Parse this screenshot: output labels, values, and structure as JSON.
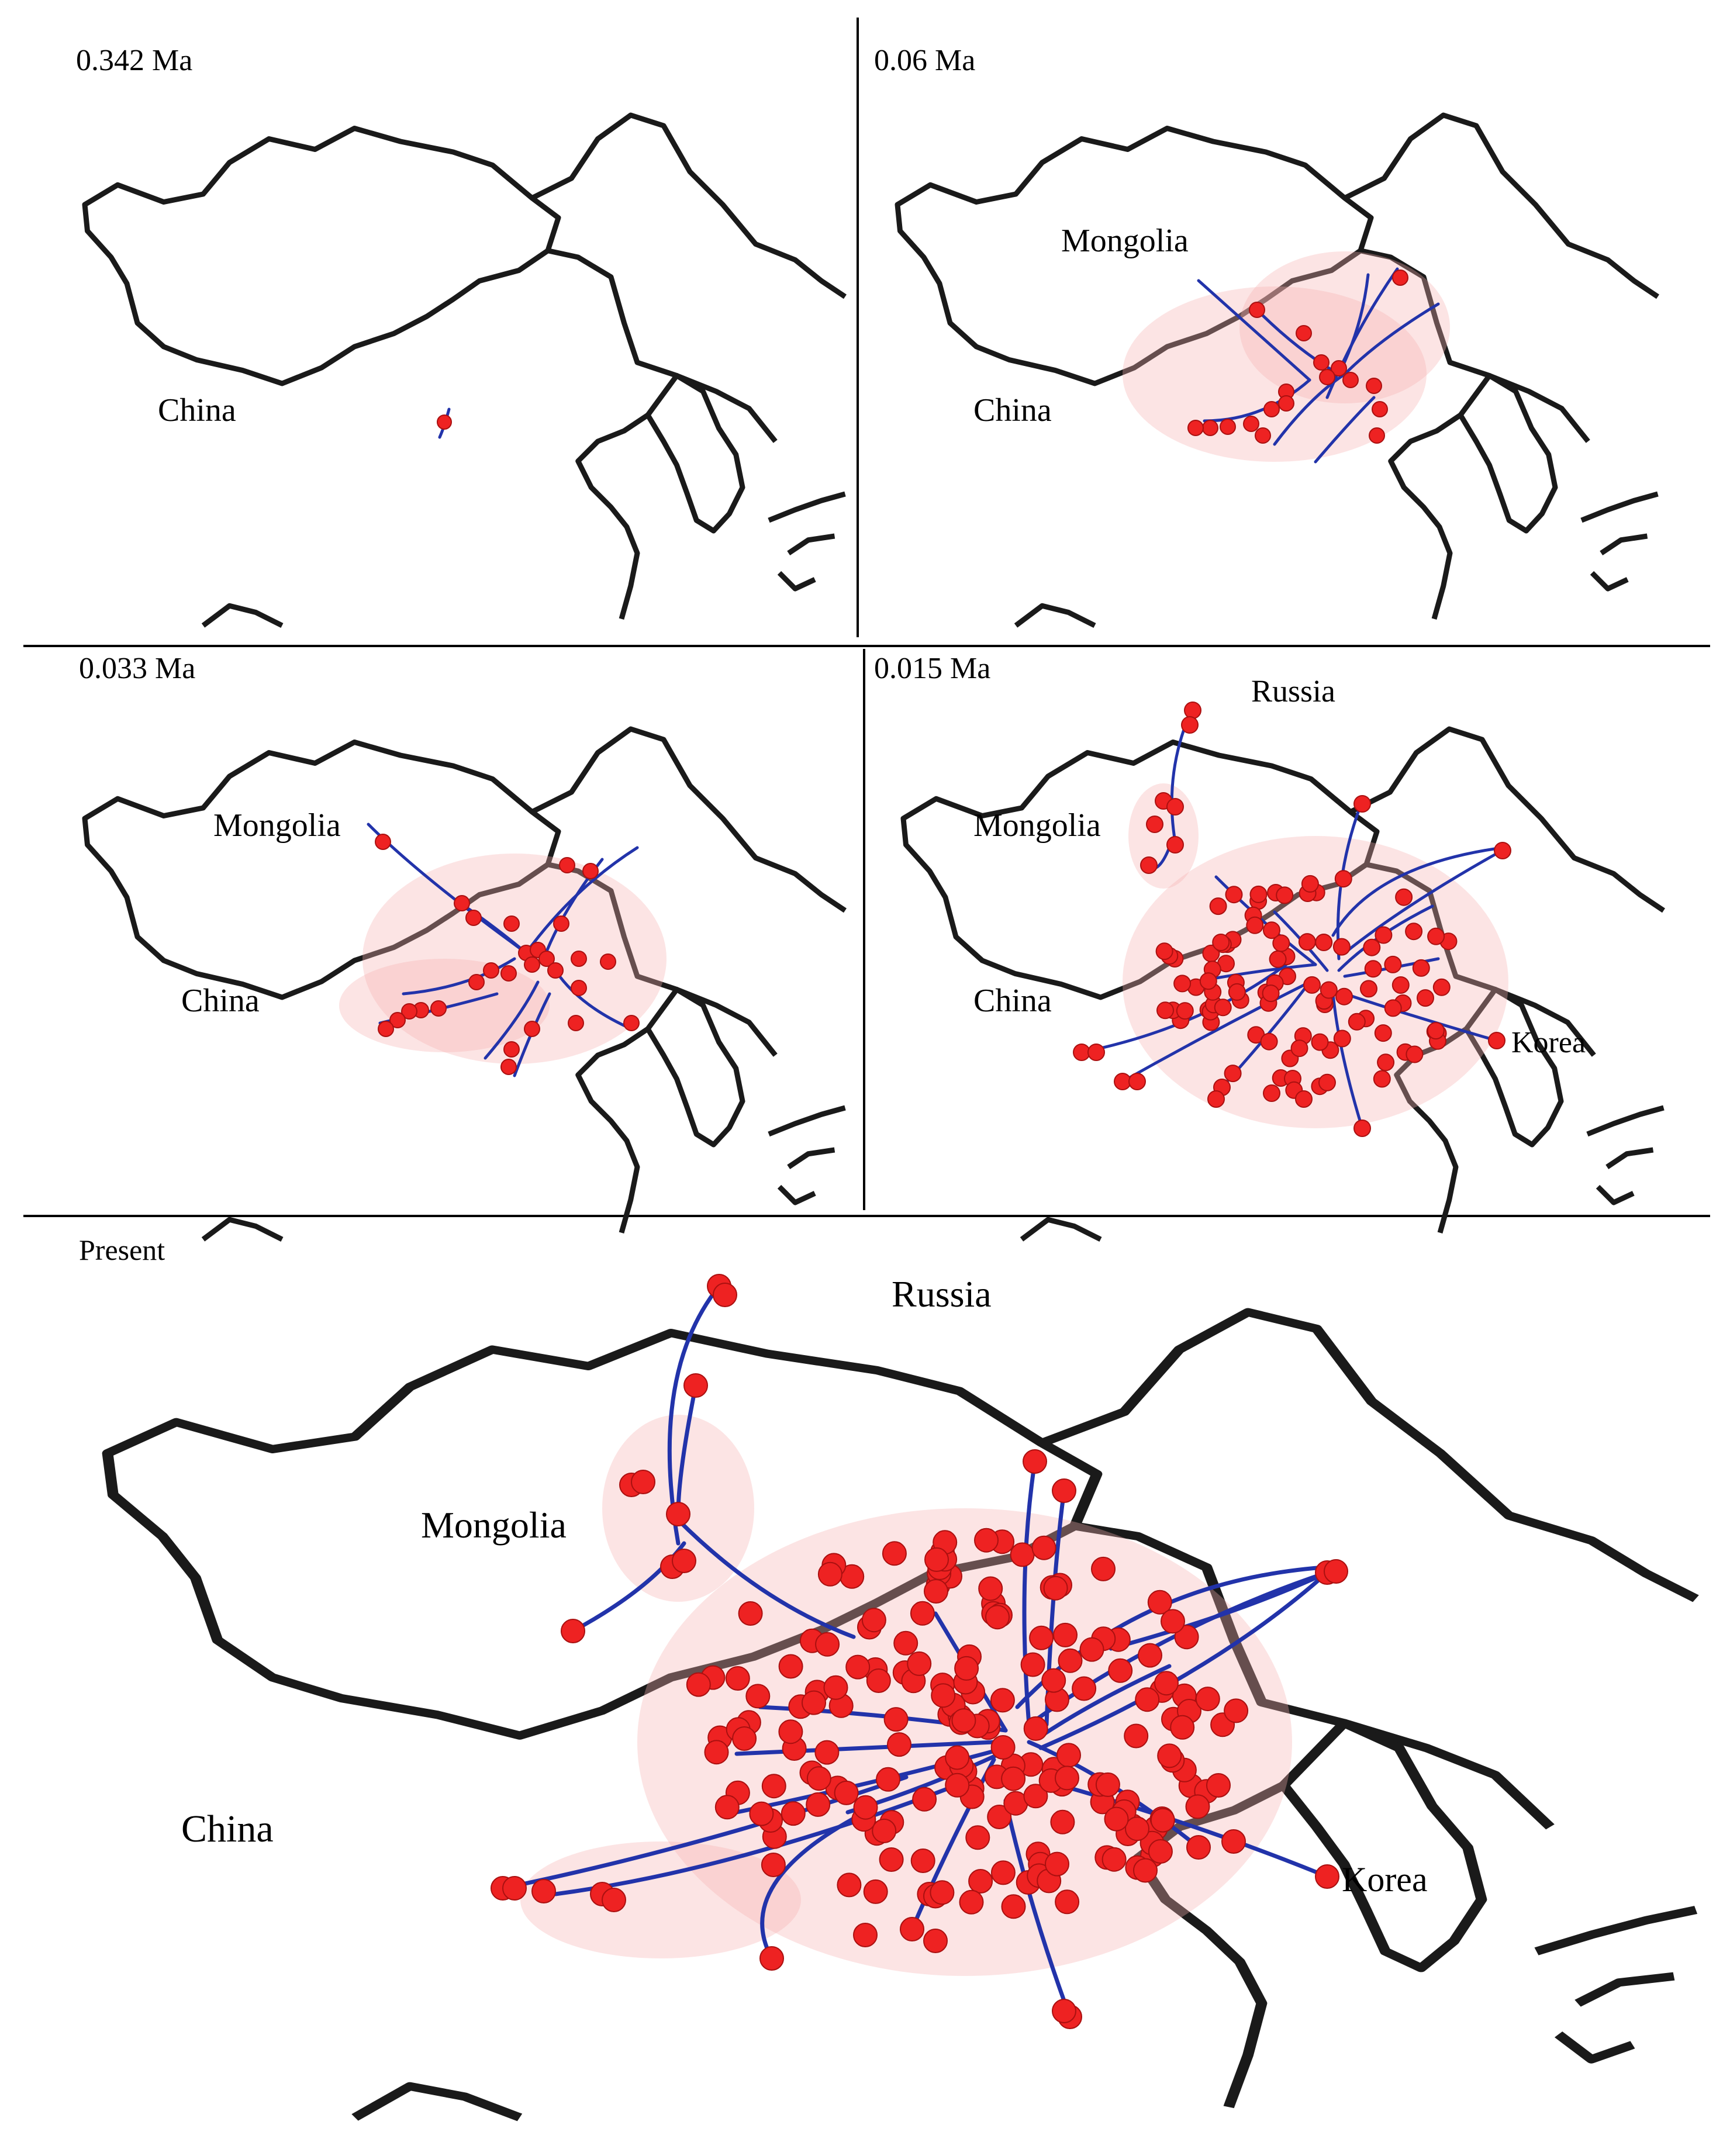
{
  "panels": [
    {
      "id": "p1",
      "time_label": "0.342 Ma",
      "countries": [
        "China"
      ]
    },
    {
      "id": "p2",
      "time_label": "0.06 Ma",
      "countries": [
        "Mongolia",
        "China"
      ]
    },
    {
      "id": "p3",
      "time_label": "0.033 Ma",
      "countries": [
        "Mongolia",
        "China"
      ]
    },
    {
      "id": "p4",
      "time_label": "0.015 Ma",
      "countries": [
        "Russia",
        "Mongolia",
        "China",
        "Korea"
      ]
    },
    {
      "id": "p5",
      "time_label": "Present",
      "countries": [
        "Russia",
        "Mongolia",
        "China",
        "Korea"
      ]
    }
  ],
  "colors": {
    "border": "#1a1a1a",
    "route": "#2233aa",
    "node": "#ee2222",
    "halo": "#f7b3b3"
  }
}
